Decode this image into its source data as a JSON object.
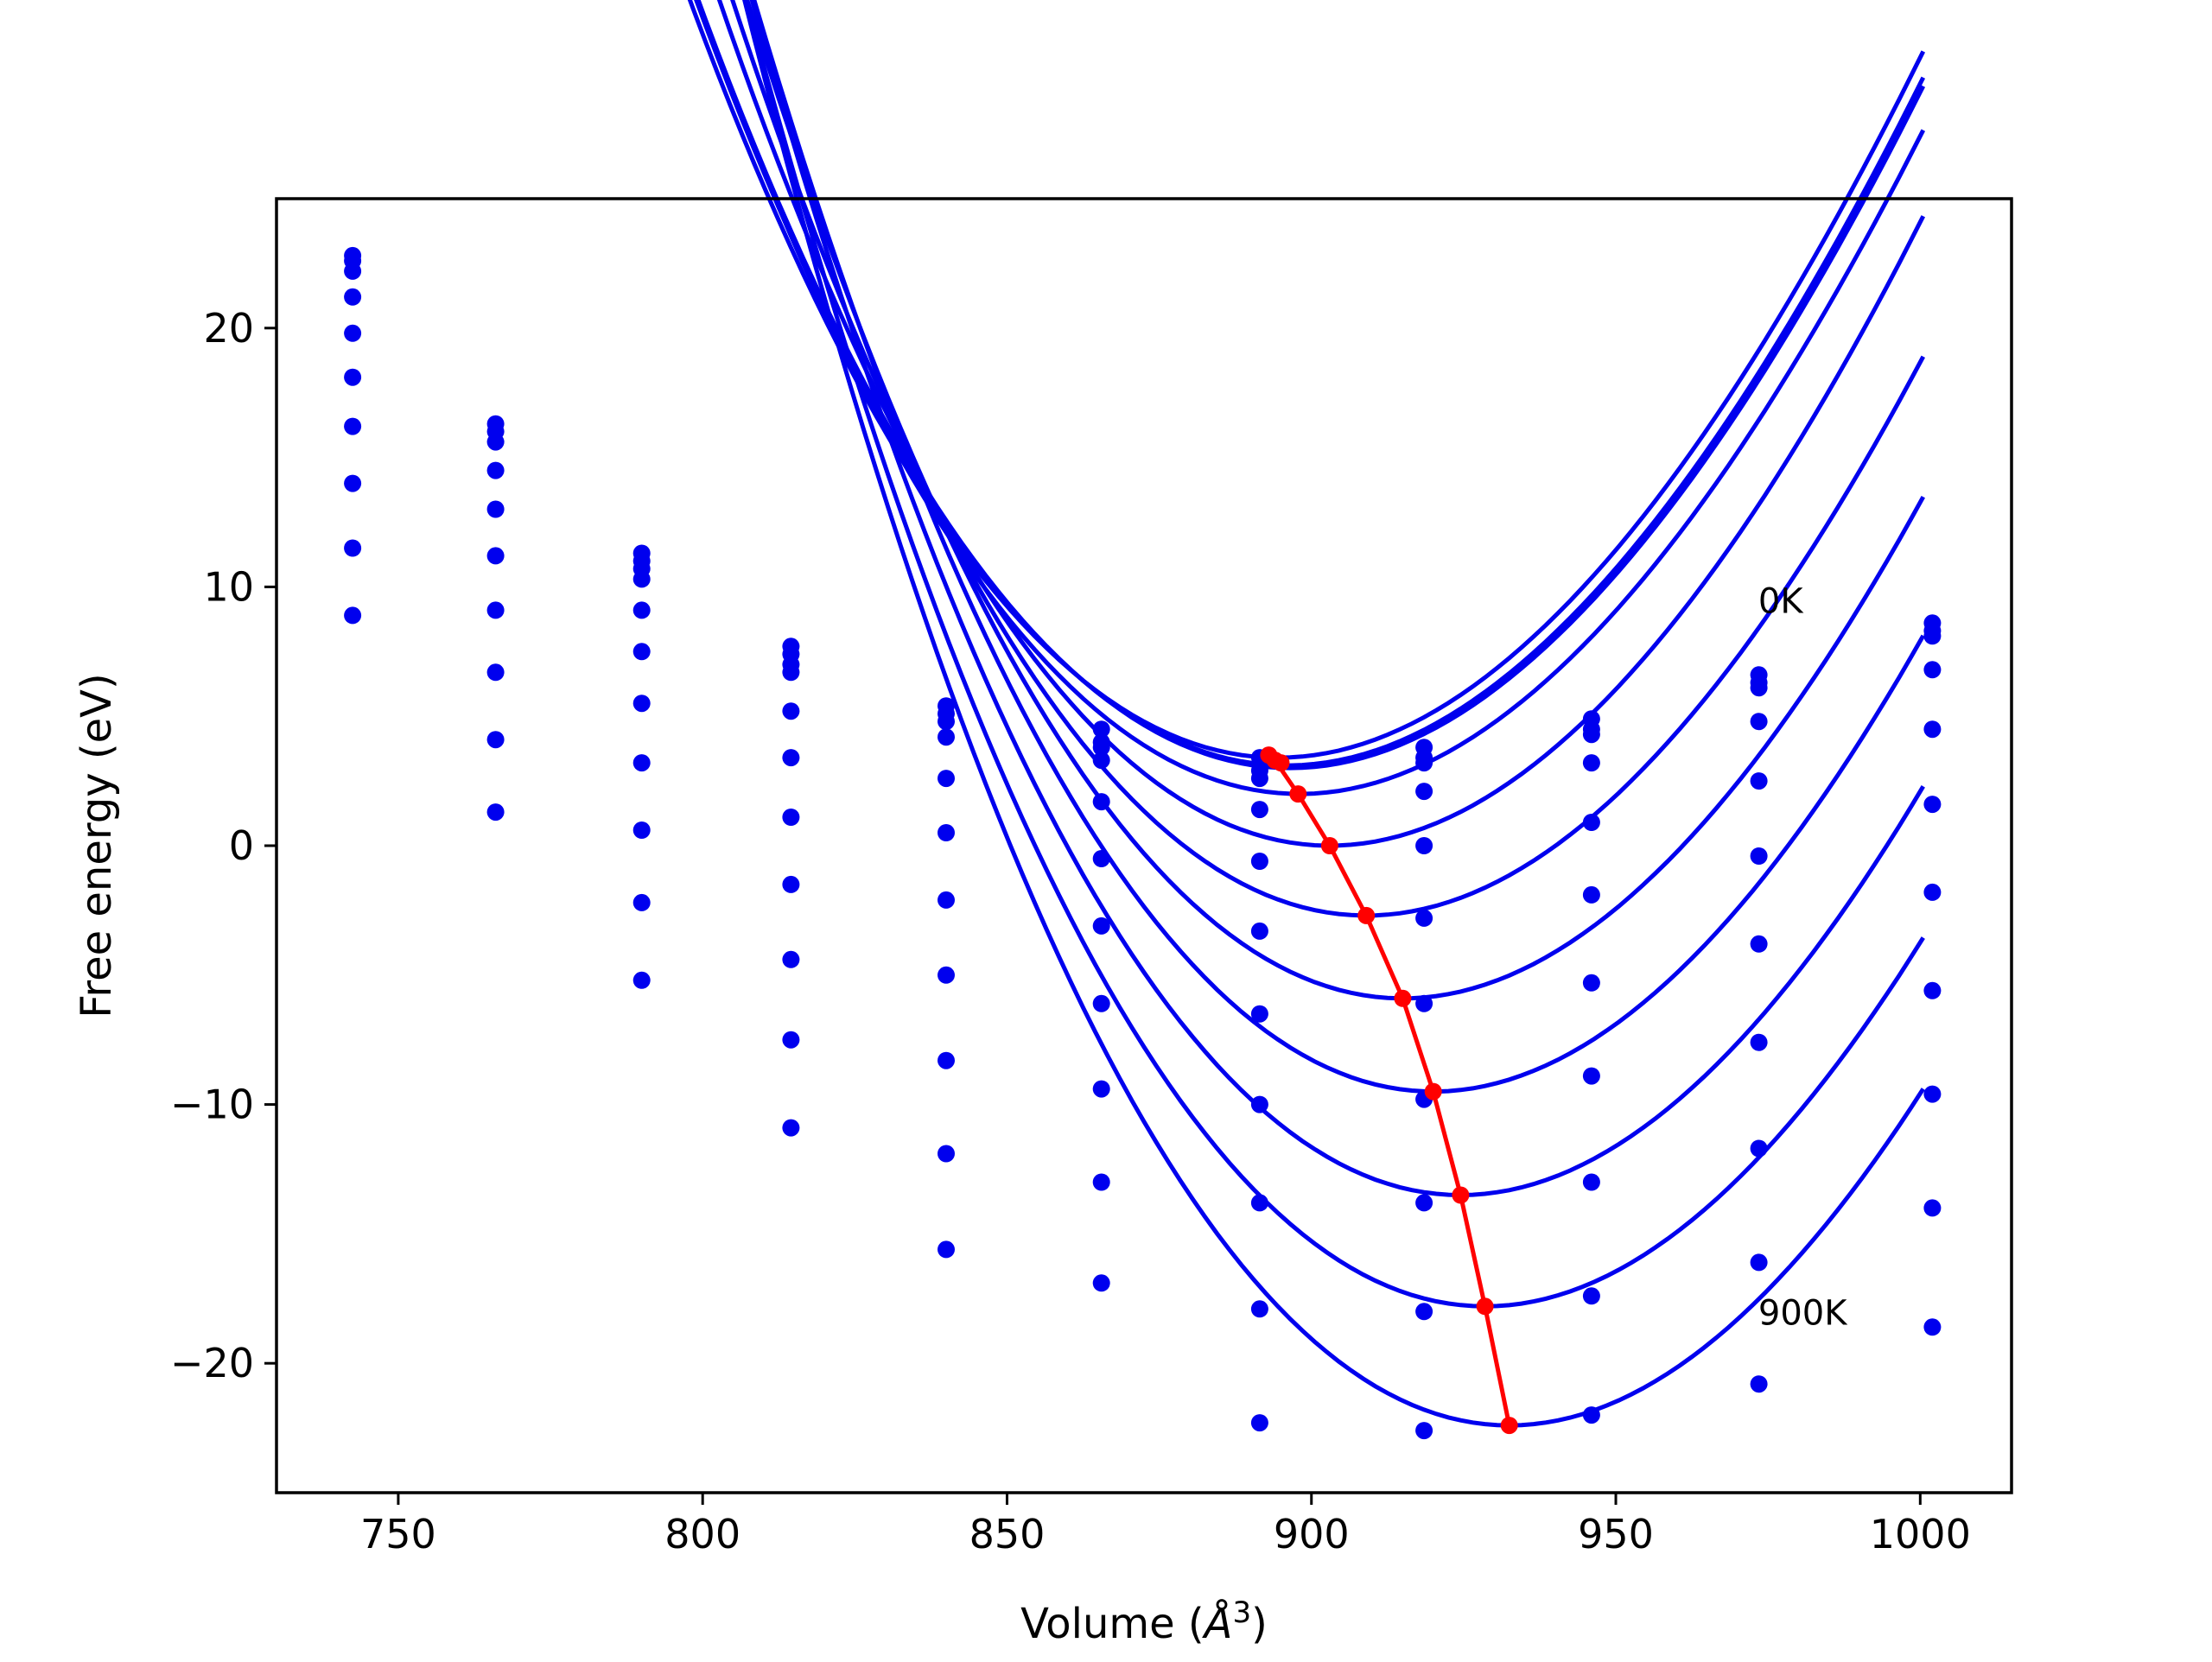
{
  "chart_data": {
    "type": "scatter",
    "title": "",
    "xlabel": "Volume (",
    "xlabel_symbol": "Å",
    "xlabel_exponent": "3",
    "xlabel_close": ")",
    "ylabel": "Free energy (eV)",
    "xlim": [
      730,
      1015
    ],
    "ylim": [
      -25,
      25
    ],
    "xticks": [
      750,
      800,
      850,
      900,
      950,
      1000
    ],
    "xtick_labels": [
      "750",
      "800",
      "850",
      "900",
      "950",
      "1000"
    ],
    "yticks": [
      -20,
      -10,
      0,
      10,
      20
    ],
    "ytick_labels": [
      "−20",
      "−10",
      "0",
      "10",
      "20"
    ],
    "grid": false,
    "legend": "none",
    "annotations": [
      {
        "text": "0K",
        "x": 973.4,
        "y": 9.0
      },
      {
        "text": "900K",
        "x": 973.4,
        "y": -18.5
      }
    ],
    "colors": {
      "series": "#0000ee",
      "minima": "#ff0000",
      "axes": "#000000"
    },
    "volumes": [
      742.5,
      766.0,
      790.0,
      814.5,
      840.0,
      865.5,
      891.5,
      918.5,
      946.0,
      973.5,
      1002.0
    ],
    "series": [
      {
        "values": [
          22.8,
          16.3,
          11.3,
          7.7,
          5.4,
          4.5,
          3.4,
          3.8,
          4.9,
          6.6,
          8.6
        ],
        "fit": {
          "a": 0.0028,
          "v0": 894.5,
          "e0": 3.4
        },
        "min": [
          893.0,
          3.5
        ]
      },
      {
        "values": [
          22.6,
          16.0,
          11.0,
          7.4,
          5.1,
          4.0,
          2.9,
          3.4,
          4.5,
          6.3,
          8.3
        ],
        "fit": {
          "a": 0.0028,
          "v0": 896.0,
          "e0": 3.1
        },
        "min": [
          895.0,
          3.2
        ]
      },
      {
        "values": [
          22.2,
          15.6,
          10.7,
          7.0,
          4.8,
          3.8,
          2.6,
          3.2,
          4.3,
          6.1,
          8.1
        ],
        "fit": {
          "a": 0.0028,
          "v0": 896.5,
          "e0": 3.0
        },
        "min": [
          894.0,
          3.3
        ]
      },
      {
        "values": [
          21.2,
          14.5,
          10.3,
          6.7,
          4.2,
          3.3,
          1.4,
          2.1,
          3.2,
          4.8,
          6.8
        ],
        "fit": {
          "a": 0.0028,
          "v0": 898.0,
          "e0": 2.0
        },
        "min": [
          897.8,
          2.0
        ]
      },
      {
        "values": [
          19.8,
          13.0,
          9.1,
          5.2,
          2.6,
          1.7,
          -0.6,
          0.0,
          0.9,
          2.5,
          4.5
        ],
        "fit": {
          "a": 0.0029,
          "v0": 903.0,
          "e0": 0.0
        },
        "min": [
          903.0,
          0.0
        ]
      },
      {
        "values": [
          18.1,
          11.2,
          7.5,
          3.4,
          0.5,
          -0.5,
          -3.3,
          -2.8,
          -1.9,
          -0.4,
          1.6
        ],
        "fit": {
          "a": 0.0029,
          "v0": 909.0,
          "e0": -2.7
        },
        "min": [
          909.0,
          -2.7
        ]
      },
      {
        "values": [
          16.2,
          9.1,
          5.5,
          1.1,
          -2.1,
          -3.1,
          -6.5,
          -6.1,
          -5.3,
          -3.8,
          -1.8
        ],
        "fit": {
          "a": 0.00295,
          "v0": 915.0,
          "e0": -5.9
        },
        "min": [
          915.0,
          -5.9
        ]
      },
      {
        "values": [
          14.0,
          6.7,
          3.2,
          -1.5,
          -5.0,
          -6.1,
          -10.0,
          -9.8,
          -8.9,
          -7.6,
          -5.6
        ],
        "fit": {
          "a": 0.003,
          "v0": 920.0,
          "e0": -9.5
        },
        "min": [
          920.0,
          -9.5
        ]
      },
      {
        "values": [
          11.5,
          4.1,
          0.6,
          -4.4,
          -8.3,
          -9.4,
          -13.8,
          -13.8,
          -13.0,
          -11.7,
          -9.6
        ],
        "fit": {
          "a": 0.003,
          "v0": 924.5,
          "e0": -13.5
        },
        "min": [
          924.5,
          -13.5
        ]
      },
      {
        "values": [
          8.9,
          1.3,
          -2.2,
          -7.5,
          -11.9,
          -13.0,
          -17.9,
          -18.0,
          -17.4,
          -16.1,
          -14.0
        ],
        "fit": {
          "a": 0.003,
          "v0": 928.5,
          "e0": -17.8
        },
        "min": [
          928.5,
          -17.8
        ]
      },
      {
        "values": [
          null,
          null,
          -5.2,
          -10.9,
          -15.6,
          -16.9,
          -22.3,
          -22.6,
          -22.0,
          -20.8,
          -18.6
        ],
        "fit": {
          "a": 0.00305,
          "v0": 932.5,
          "e0": -22.4
        },
        "min": [
          932.5,
          -22.4
        ]
      }
    ]
  }
}
